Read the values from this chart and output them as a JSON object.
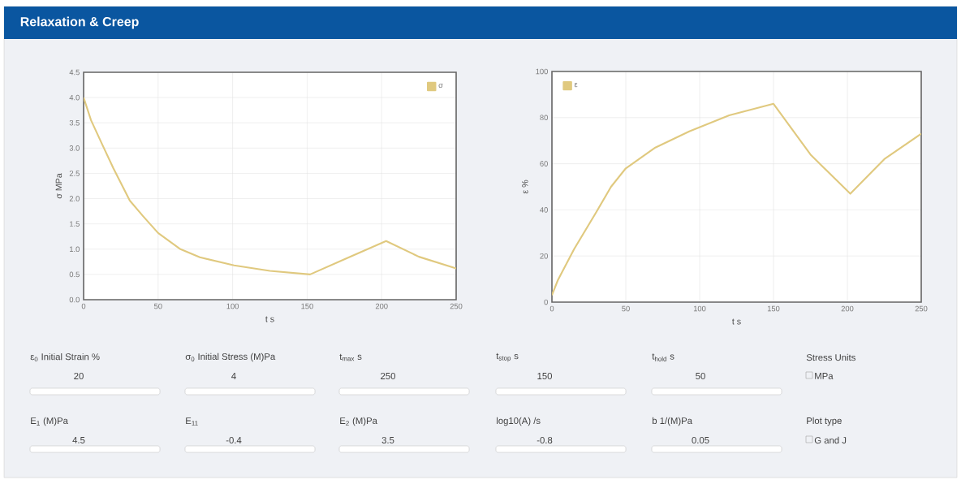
{
  "chart_data": [
    {
      "type": "line",
      "title": "Relaxation & Creep",
      "xlabel": "t s",
      "ylabel": "σ MPa",
      "x": [
        0,
        5,
        13,
        20,
        31,
        40,
        50,
        65,
        78,
        101,
        125,
        152,
        175,
        203,
        225,
        250
      ],
      "series": [
        {
          "name": "σ",
          "color": "#e0c97f",
          "values": [
            4.0,
            3.55,
            3.04,
            2.6,
            1.96,
            1.65,
            1.32,
            1.0,
            0.84,
            0.68,
            0.57,
            0.5,
            0.8,
            1.16,
            0.85,
            0.62
          ]
        }
      ],
      "xlim": [
        0,
        250
      ],
      "xticks": [
        0,
        50,
        100,
        150,
        200,
        250
      ],
      "ylim": [
        0,
        4.5
      ],
      "yticks": [
        {
          "value": 0,
          "label": "0.0"
        },
        {
          "value": 0.5,
          "label": "0.5"
        },
        {
          "value": 1,
          "label": "1.0"
        },
        {
          "value": 1.5,
          "label": "1.5"
        },
        {
          "value": 2,
          "label": "2.0"
        },
        {
          "value": 2.5,
          "label": "2.5"
        },
        {
          "value": 3,
          "label": "3.0"
        },
        {
          "value": 3.5,
          "label": "3.5"
        },
        {
          "value": 4,
          "label": "4.0"
        },
        {
          "value": 4.5,
          "label": "4.5"
        }
      ],
      "grid": true,
      "legend": "top right"
    },
    {
      "type": "line",
      "xlabel": "t s",
      "ylabel": "ε %",
      "x": [
        0,
        4,
        15,
        30,
        40,
        50,
        70,
        93,
        120,
        150,
        175,
        202,
        225,
        250
      ],
      "series": [
        {
          "name": "ε",
          "color": "#e0c97f",
          "values": [
            3,
            9.5,
            23,
            39,
            50,
            58,
            67,
            74,
            81,
            86,
            64,
            47,
            62,
            73
          ]
        }
      ],
      "xlim": [
        0,
        250
      ],
      "xticks": [
        0,
        50,
        100,
        150,
        200,
        250
      ],
      "ylim": [
        0,
        100
      ],
      "yticks": [
        0,
        20,
        40,
        60,
        80,
        100
      ],
      "grid": true,
      "legend": "top left"
    },
    {
      "type": "other",
      "annotations": [
        "ε$_{0}$ Initial Strain %",
        "20",
        "σ$_{0}$ Initial Stress (M)Pa",
        "4",
        "t$_{max}$ s",
        "250",
        "t$_{stop}$ s",
        "150",
        "t$_{hold}$ s",
        "50",
        "Stress Units",
        "MPa",
        "E$_{1}$ (M)Pa",
        "4.5",
        "E$_{11}$",
        "-0.4",
        "E$_{2}$ (M)Pa",
        "3.5",
        "log10(A) /s",
        "-0.8",
        "b 1/(M)Pa",
        "0.05",
        "Plot type",
        "G and J"
      ]
    }
  ]
}
